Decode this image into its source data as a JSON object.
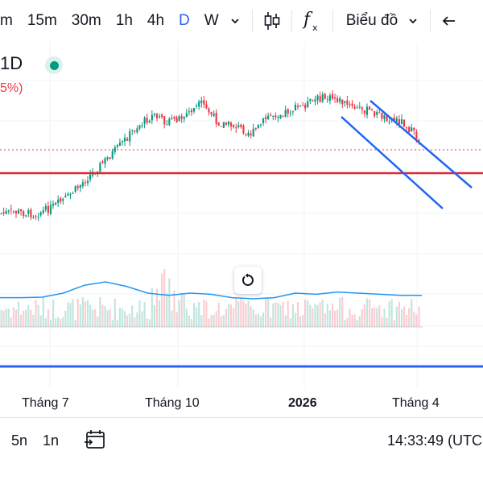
{
  "toolbar": {
    "timeframes": [
      "m",
      "15m",
      "30m",
      "1h",
      "4h",
      "D",
      "W"
    ],
    "active_timeframe": "D",
    "chart_type_label": "Biểu đồ",
    "indicator_icon": "function-fx-icon",
    "candle_icon": "candlestick-icon"
  },
  "legend": {
    "symbol": "1D",
    "change": "5%)",
    "status_color": "#089981"
  },
  "time_axis": {
    "labels": [
      "Tháng 7",
      "Tháng 10",
      "2026",
      "Tháng 4"
    ]
  },
  "bottom": {
    "ranges": [
      "5n",
      "1n"
    ],
    "clock": "14:33:49 (UTC"
  },
  "colors": {
    "up": "#089981",
    "down": "#f23645",
    "accent": "#2962ff",
    "support_line": "#e5252f",
    "channel": "#1e66f5",
    "volume_ma": "#2196f3"
  },
  "chart_data": {
    "type": "candlestick",
    "series_shape": [
      0.84,
      0.83,
      0.85,
      0.8,
      0.72,
      0.6,
      0.48,
      0.36,
      0.22,
      0.13,
      0.18,
      0.12,
      0.04,
      0.18,
      0.2,
      0.26,
      0.13,
      0.1,
      0.06,
      0.0,
      0.0,
      0.07,
      0.09,
      0.14,
      0.17,
      0.3
    ],
    "volume_ma_shape": [
      0.3,
      0.3,
      0.32,
      0.5,
      0.85,
      1.0,
      0.8,
      0.5,
      0.4,
      0.5,
      0.45,
      0.3,
      0.25,
      0.3,
      0.5,
      0.45,
      0.55,
      0.5,
      0.45,
      0.4,
      0.4
    ]
  }
}
